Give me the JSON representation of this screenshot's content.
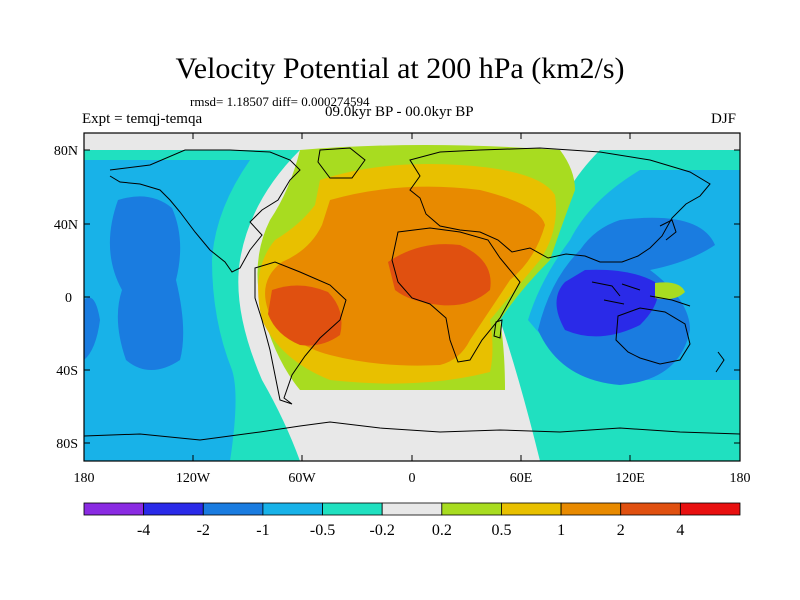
{
  "title": "Velocity Potential at 200 hPa (km2/s)",
  "stats": "rmsd= 1.18507 diff= 0.000274594",
  "expt": "Expt = temqj-temqa",
  "period": "09.0kyr BP - 00.0kyr BP",
  "season": "DJF",
  "axes": {
    "lat_ticks": [
      "80N",
      "40N",
      "0",
      "40S",
      "80S"
    ],
    "lon_ticks": [
      "180",
      "120W",
      "60W",
      "0",
      "60E",
      "120E",
      "180"
    ]
  },
  "colorbar": {
    "colors": [
      "#8a2be2",
      "#2a2ae8",
      "#1a7ce0",
      "#18b2e8",
      "#20e0c0",
      "#e8e8e8",
      "#a8dc20",
      "#e8c000",
      "#e88a00",
      "#e05010",
      "#e81010"
    ],
    "labels": [
      "-4",
      "-2",
      "-1",
      "-0.5",
      "-0.2",
      "0.2",
      "0.5",
      "1",
      "2",
      "4"
    ]
  }
}
